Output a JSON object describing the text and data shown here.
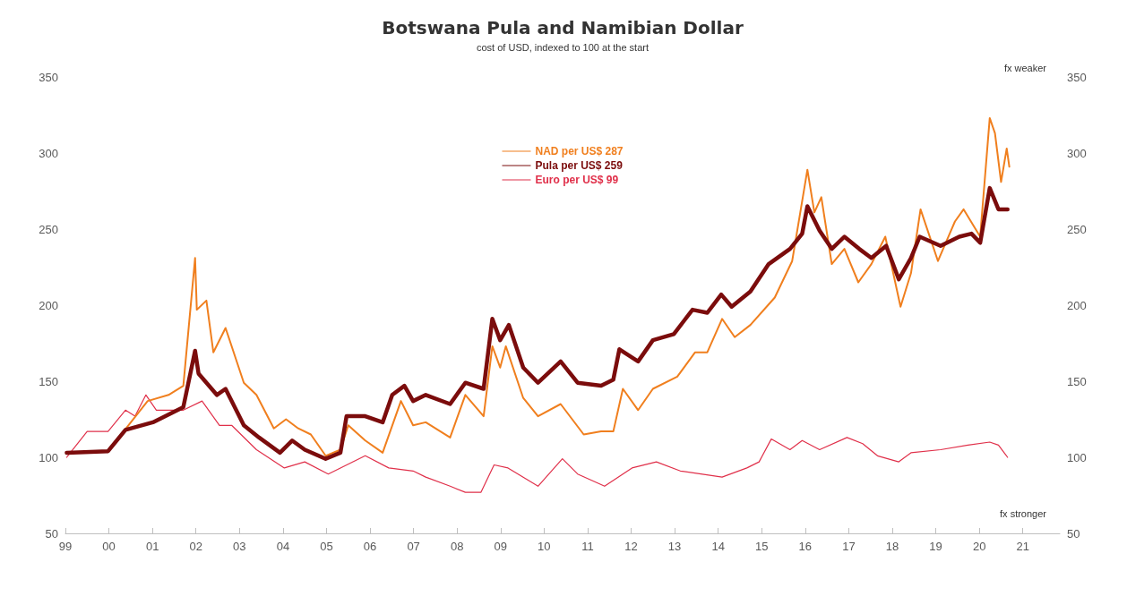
{
  "chart_data": {
    "type": "line",
    "title": "Botswana Pula and Namibian Dollar",
    "subtitle": "cost of USD, indexed to 100 at the start",
    "annotations": [
      "fx weaker",
      "fx stronger"
    ],
    "xlim": [
      1999,
      2021.85
    ],
    "xticks": [
      {
        "value": 1999,
        "label": "99"
      },
      {
        "value": 2000,
        "label": "00"
      },
      {
        "value": 2001,
        "label": "01"
      },
      {
        "value": 2002,
        "label": "02"
      },
      {
        "value": 2003,
        "label": "03"
      },
      {
        "value": 2004,
        "label": "04"
      },
      {
        "value": 2005,
        "label": "05"
      },
      {
        "value": 2006,
        "label": "06"
      },
      {
        "value": 2007,
        "label": "07"
      },
      {
        "value": 2008,
        "label": "08"
      },
      {
        "value": 2009,
        "label": "09"
      },
      {
        "value": 2010,
        "label": "10"
      },
      {
        "value": 2011,
        "label": "11"
      },
      {
        "value": 2012,
        "label": "12"
      },
      {
        "value": 2013,
        "label": "13"
      },
      {
        "value": 2014,
        "label": "14"
      },
      {
        "value": 2015,
        "label": "15"
      },
      {
        "value": 2016,
        "label": "16"
      },
      {
        "value": 2017,
        "label": "17"
      },
      {
        "value": 2018,
        "label": "18"
      },
      {
        "value": 2019,
        "label": "19"
      },
      {
        "value": 2020,
        "label": "20"
      },
      {
        "value": 2021,
        "label": "21"
      }
    ],
    "ylim": [
      50,
      350
    ],
    "yticks": [
      50,
      100,
      150,
      200,
      250,
      300,
      350
    ],
    "y2lim": [
      50,
      350
    ],
    "y2ticks": [
      50,
      100,
      150,
      200,
      250,
      300,
      350
    ],
    "grid": false,
    "legend": "top",
    "line_style": "solid",
    "marker": "none",
    "series": [
      {
        "name": "NAD per US$ 287",
        "color": "#f07f1e",
        "x": [
          1999.03,
          1999.98,
          2000.89,
          2001.37,
          2001.71,
          2001.98,
          2002.02,
          2002.24,
          2002.4,
          2002.68,
          2003.1,
          2003.39,
          2003.79,
          2004.07,
          2004.35,
          2004.64,
          2004.98,
          2005.32,
          2005.5,
          2005.89,
          2006.29,
          2006.71,
          2006.99,
          2007.28,
          2007.84,
          2008.19,
          2008.61,
          2008.81,
          2008.99,
          2009.12,
          2009.52,
          2009.86,
          2010.38,
          2010.91,
          2011.31,
          2011.59,
          2011.81,
          2012.16,
          2012.5,
          2013.06,
          2013.47,
          2013.75,
          2014.09,
          2014.38,
          2014.74,
          2015.3,
          2015.7,
          2016.05,
          2016.21,
          2016.37,
          2016.61,
          2016.9,
          2017.22,
          2017.52,
          2017.84,
          2018.19,
          2018.43,
          2018.65,
          2019.05,
          2019.44,
          2019.64,
          2020.02,
          2020.24,
          2020.36,
          2020.5,
          2020.63,
          2020.69
        ],
        "values": [
          103,
          104,
          137,
          141,
          147,
          231,
          197,
          203,
          169,
          185,
          149,
          141,
          119,
          125,
          119,
          115,
          101,
          105,
          121,
          111,
          103,
          137,
          121,
          123,
          113,
          141,
          127,
          173,
          159,
          173,
          139,
          127,
          135,
          115,
          117,
          117,
          145,
          131,
          145,
          153,
          169,
          169,
          191,
          179,
          187,
          205,
          229,
          289,
          261,
          271,
          227,
          237,
          215,
          227,
          245,
          199,
          221,
          263,
          229,
          255,
          263,
          245,
          323,
          313,
          281,
          303,
          291
        ]
      },
      {
        "name": "Pula per US$ 259",
        "color": "#7b0c0c",
        "x": [
          1999.03,
          1999.98,
          2000.38,
          2001.01,
          2001.71,
          2001.98,
          2002.06,
          2002.48,
          2002.68,
          2003.1,
          2003.45,
          2003.93,
          2004.21,
          2004.5,
          2004.98,
          2005.32,
          2005.46,
          2005.89,
          2006.29,
          2006.51,
          2006.79,
          2006.99,
          2007.28,
          2007.84,
          2008.19,
          2008.61,
          2008.81,
          2008.99,
          2009.19,
          2009.52,
          2009.86,
          2010.38,
          2010.77,
          2011.31,
          2011.59,
          2011.73,
          2012.16,
          2012.5,
          2012.98,
          2013.41,
          2013.75,
          2014.07,
          2014.31,
          2014.74,
          2015.16,
          2015.65,
          2015.93,
          2016.05,
          2016.33,
          2016.61,
          2016.9,
          2017.24,
          2017.52,
          2017.86,
          2018.15,
          2018.43,
          2018.63,
          2019.11,
          2019.54,
          2019.82,
          2020.02,
          2020.24,
          2020.44,
          2020.65
        ],
        "values": [
          103,
          104,
          118,
          123,
          133,
          170,
          155,
          141,
          145,
          121,
          113,
          103,
          111,
          105,
          99,
          103,
          127,
          127,
          123,
          141,
          147,
          137,
          141,
          135,
          149,
          145,
          191,
          177,
          187,
          159,
          149,
          163,
          149,
          147,
          151,
          171,
          163,
          177,
          181,
          197,
          195,
          207,
          199,
          209,
          227,
          237,
          247,
          265,
          249,
          237,
          245,
          237,
          231,
          239,
          217,
          231,
          245,
          239,
          245,
          247,
          241,
          277,
          263,
          263
        ]
      },
      {
        "name": "Euro per US$ 99",
        "color": "#e0304a",
        "x": [
          1999.03,
          1999.5,
          1999.98,
          2000.38,
          2000.6,
          2000.85,
          2001.09,
          2001.71,
          2002.14,
          2002.54,
          2002.82,
          2003.39,
          2004.03,
          2004.5,
          2005.04,
          2005.89,
          2006.43,
          2006.99,
          2007.28,
          2007.84,
          2008.19,
          2008.55,
          2008.85,
          2009.17,
          2009.86,
          2010.42,
          2010.77,
          2011.39,
          2012.02,
          2012.58,
          2013.13,
          2014.09,
          2014.66,
          2014.94,
          2015.22,
          2015.65,
          2015.93,
          2016.33,
          2016.96,
          2017.32,
          2017.66,
          2018.15,
          2018.43,
          2019.11,
          2019.74,
          2020.24,
          2020.44,
          2020.65
        ],
        "values": [
          100,
          117,
          117,
          131,
          127,
          141,
          131,
          131,
          137,
          121,
          121,
          105,
          93,
          97,
          89,
          101,
          93,
          91,
          87,
          81,
          77,
          77,
          95,
          93,
          81,
          99,
          89,
          81,
          93,
          97,
          91,
          87,
          93,
          97,
          112,
          105,
          111,
          105,
          113,
          109,
          101,
          97,
          103,
          105,
          108,
          110,
          108,
          100
        ]
      }
    ]
  }
}
